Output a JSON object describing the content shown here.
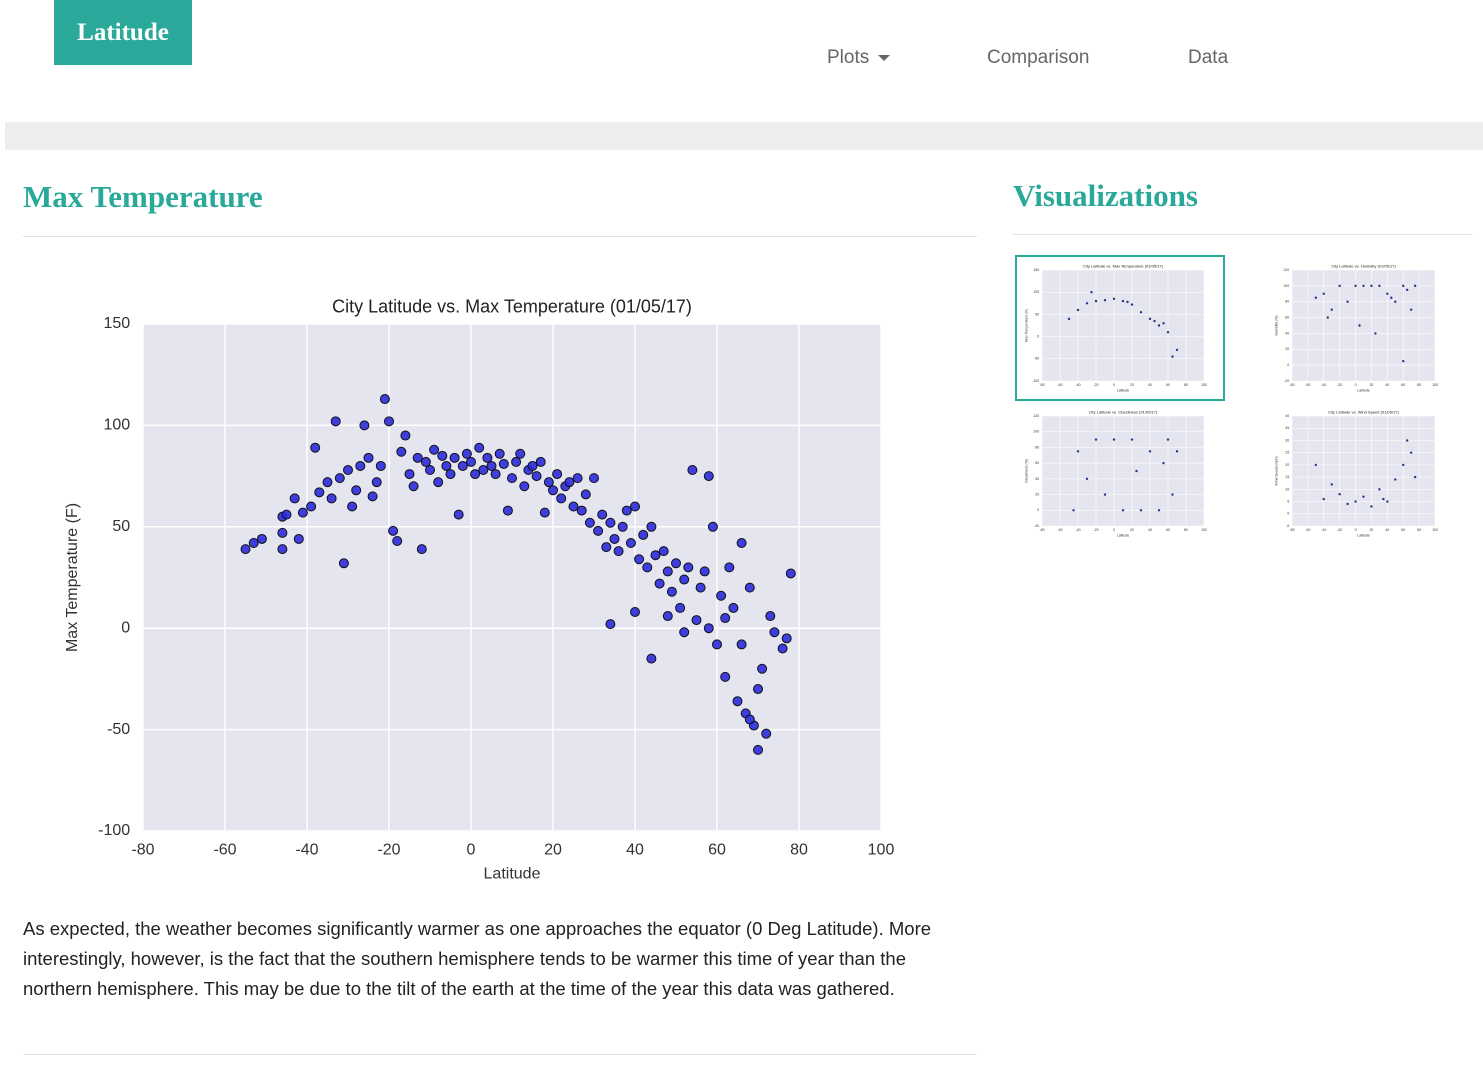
{
  "navbar": {
    "brand": "Latitude",
    "links": [
      "Plots",
      "Comparison",
      "Data"
    ]
  },
  "main": {
    "heading": "Max Temperature",
    "description": "As expected, the weather becomes significantly warmer as one approaches the equator (0 Deg Latitude). More interestingly, however, is the fact that the southern hemisphere tends to be warmer this time of year than the northern hemisphere. This may be due to the tilt of the earth at the time of the year this data was gathered."
  },
  "sidebar": {
    "heading": "Visualizations"
  },
  "chart_data": [
    {
      "type": "scatter",
      "title": "City Latitude vs. Max Temperature (01/05/17)",
      "x_label": "Latitude",
      "y_label": "Max Temperature (F)",
      "color": "#2b2bdb",
      "grid": true,
      "xlim": [
        -80,
        100
      ],
      "xticks": [
        -80,
        -60,
        -40,
        -20,
        0,
        20,
        40,
        60,
        80,
        100
      ],
      "ylim": [
        -100,
        150
      ],
      "yticks": [
        -100,
        -50,
        0,
        50,
        100,
        150
      ],
      "x": [
        -55,
        -53,
        -51,
        -46,
        -45,
        -46,
        -46,
        -42,
        -43,
        -41,
        -39,
        -38,
        -37,
        -35,
        -34,
        -33,
        -32,
        -31,
        -30,
        -29,
        -28,
        -27,
        -26,
        -25,
        -24,
        -23,
        -22,
        -21,
        -20,
        -19,
        -18,
        -17,
        -16,
        -15,
        -14,
        -13,
        -12,
        -11,
        -10,
        -9,
        -8,
        -7,
        -6,
        -5,
        -4,
        -3,
        -2,
        -1,
        0,
        1,
        2,
        3,
        4,
        5,
        6,
        7,
        8,
        9,
        10,
        11,
        12,
        13,
        14,
        15,
        16,
        17,
        18,
        19,
        20,
        21,
        22,
        23,
        24,
        25,
        26,
        27,
        28,
        29,
        30,
        31,
        32,
        33,
        34,
        35,
        36,
        37,
        38,
        39,
        40,
        41,
        42,
        43,
        44,
        45,
        46,
        47,
        48,
        49,
        50,
        51,
        52,
        53,
        54,
        55,
        56,
        57,
        58,
        59,
        60,
        61,
        62,
        63,
        64,
        65,
        66,
        67,
        68,
        69,
        70,
        71,
        72,
        73,
        74,
        76,
        78,
        77,
        44,
        34,
        70,
        68,
        58,
        52,
        48,
        40,
        62,
        66
      ],
      "values": [
        39,
        42,
        44,
        55,
        56,
        47,
        39,
        44,
        64,
        57,
        60,
        89,
        67,
        72,
        64,
        102,
        74,
        32,
        78,
        60,
        68,
        80,
        100,
        84,
        65,
        72,
        80,
        113,
        102,
        48,
        43,
        87,
        95,
        76,
        70,
        84,
        39,
        82,
        78,
        88,
        72,
        85,
        80,
        76,
        84,
        56,
        80,
        86,
        82,
        76,
        89,
        78,
        84,
        80,
        76,
        86,
        81,
        58,
        74,
        82,
        86,
        70,
        78,
        80,
        75,
        82,
        57,
        72,
        68,
        76,
        64,
        70,
        72,
        60,
        74,
        58,
        66,
        52,
        74,
        48,
        56,
        40,
        52,
        44,
        38,
        50,
        58,
        42,
        60,
        34,
        46,
        30,
        50,
        36,
        22,
        38,
        28,
        18,
        32,
        10,
        24,
        30,
        78,
        4,
        20,
        28,
        75,
        50,
        -8,
        16,
        -24,
        30,
        10,
        -36,
        42,
        -42,
        20,
        -48,
        -30,
        -20,
        -52,
        6,
        -2,
        -10,
        27,
        -5,
        -15,
        2,
        -60,
        -45,
        0,
        -2,
        6,
        8,
        5,
        -8
      ]
    },
    {
      "type": "scatter",
      "title": "City Latitude vs. Max Temperature (01/05/17)",
      "x_label": "Latitude",
      "y_label": "Max Temperature (F)",
      "color": "#1c1c7a",
      "grid": true,
      "xlim": [
        -80,
        100
      ],
      "xticks": [
        -80,
        -60,
        -40,
        -20,
        0,
        20,
        40,
        60,
        80,
        100
      ],
      "ylim": [
        -100,
        150
      ],
      "yticks": [
        -100,
        -50,
        0,
        50,
        100,
        150
      ],
      "x": [
        -50,
        -40,
        -30,
        -20,
        -10,
        0,
        10,
        20,
        30,
        40,
        50,
        60,
        70,
        -25,
        15,
        45,
        65,
        55
      ],
      "values": [
        40,
        60,
        75,
        80,
        82,
        85,
        80,
        72,
        55,
        40,
        25,
        10,
        -30,
        100,
        78,
        35,
        -45,
        30
      ]
    },
    {
      "type": "scatter",
      "title": "City Latitude vs. Humidity (01/05/17)",
      "x_label": "Latitude",
      "y_label": "Humidity (%)",
      "color": "#1c1c7a",
      "grid": true,
      "xlim": [
        -80,
        100
      ],
      "xticks": [
        -80,
        -60,
        -40,
        -20,
        0,
        20,
        40,
        60,
        80,
        100
      ],
      "ylim": [
        -20,
        120
      ],
      "yticks": [
        -20,
        0,
        20,
        40,
        60,
        80,
        100,
        120
      ],
      "x": [
        -40,
        -30,
        -20,
        -10,
        0,
        10,
        20,
        30,
        40,
        50,
        60,
        70,
        -35,
        5,
        25,
        45,
        65,
        75,
        60,
        -50
      ],
      "values": [
        90,
        70,
        100,
        80,
        100,
        100,
        100,
        100,
        90,
        80,
        100,
        70,
        60,
        50,
        40,
        85,
        95,
        100,
        5,
        85
      ]
    },
    {
      "type": "scatter",
      "title": "City Latitude vs. Cloudiness (01/05/17)",
      "x_label": "Latitude",
      "y_label": "Cloudiness (%)",
      "color": "#1c1c7a",
      "grid": true,
      "xlim": [
        -80,
        100
      ],
      "xticks": [
        -80,
        -60,
        -40,
        -20,
        0,
        20,
        40,
        60,
        80,
        100
      ],
      "ylim": [
        -20,
        120
      ],
      "yticks": [
        -20,
        0,
        20,
        40,
        60,
        80,
        100,
        120
      ],
      "x": [
        -40,
        -20,
        0,
        20,
        40,
        60,
        -30,
        10,
        30,
        50,
        70,
        -10,
        55,
        -45,
        25,
        65
      ],
      "values": [
        75,
        90,
        90,
        90,
        75,
        90,
        40,
        0,
        0,
        0,
        75,
        20,
        60,
        0,
        50,
        20
      ]
    },
    {
      "type": "scatter",
      "title": "City Latitude vs. Wind Speed (01/05/17)",
      "x_label": "Latitude",
      "y_label": "Wind Speed (mph)",
      "color": "#1c1c7a",
      "grid": true,
      "xlim": [
        -80,
        100
      ],
      "xticks": [
        -80,
        -60,
        -40,
        -20,
        0,
        20,
        40,
        60,
        80,
        100
      ],
      "ylim": [
        -5,
        40
      ],
      "yticks": [
        -5,
        0,
        5,
        10,
        15,
        20,
        25,
        30,
        35,
        40
      ],
      "x": [
        -40,
        -30,
        -20,
        -10,
        0,
        10,
        20,
        30,
        40,
        50,
        60,
        70,
        65,
        75,
        -50,
        35
      ],
      "values": [
        6,
        12,
        8,
        4,
        5,
        7,
        3,
        10,
        5,
        14,
        20,
        25,
        30,
        15,
        20,
        6
      ]
    }
  ]
}
